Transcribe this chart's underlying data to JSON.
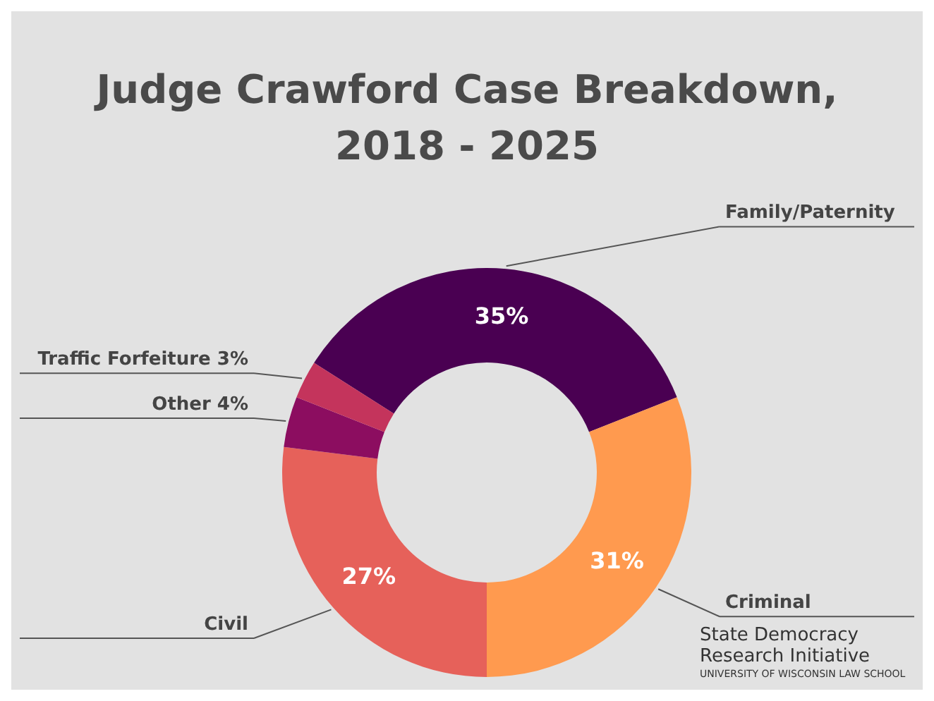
{
  "chart_data": {
    "type": "donut",
    "title": "Judge Crawford Case Breakdown, 2018 - 2025",
    "categories": [
      "Family/Paternity",
      "Criminal",
      "Civil",
      "Other",
      "Traffic Forfeiture"
    ],
    "values": [
      35,
      31,
      27,
      4,
      3
    ],
    "value_labels": [
      "35%",
      "31%",
      "27%",
      "4%",
      "3%"
    ],
    "colors": [
      "#4a0052",
      "#ff9a4f",
      "#e6615a",
      "#8c0d60",
      "#c4345c"
    ],
    "legend": false,
    "annotations": [
      "State Democracy Research Initiative",
      "UNIVERSITY OF WISCONSIN LAW SCHOOL"
    ]
  }
}
